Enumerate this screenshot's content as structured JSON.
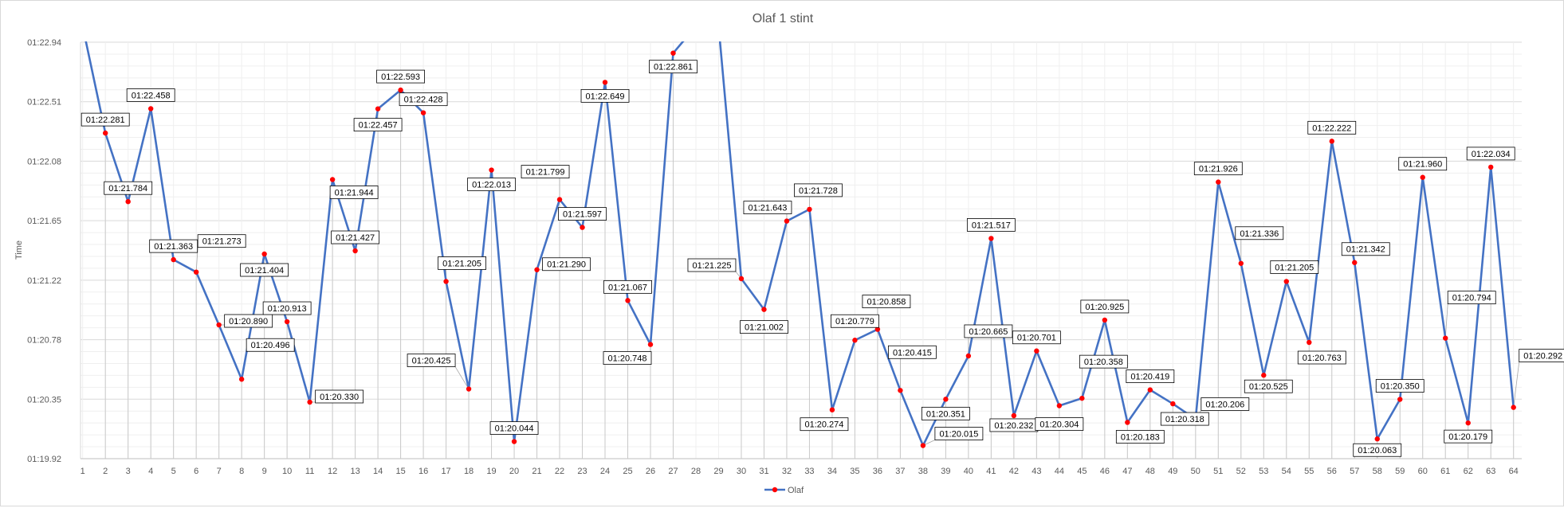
{
  "chart_data": {
    "type": "line",
    "title": "Olaf 1 stint",
    "xlabel": "",
    "ylabel": "Time",
    "x": [
      "1",
      "2",
      "3",
      "4",
      "5",
      "6",
      "7",
      "8",
      "9",
      "10",
      "11",
      "12",
      "13",
      "14",
      "15",
      "16",
      "17",
      "18",
      "19",
      "20",
      "21",
      "22",
      "23",
      "24",
      "25",
      "26",
      "27",
      "28",
      "29",
      "30",
      "31",
      "32",
      "33",
      "34",
      "35",
      "36",
      "37",
      "38",
      "39",
      "40",
      "41",
      "42",
      "43",
      "44",
      "45",
      "46",
      "47",
      "48",
      "49",
      "50",
      "51",
      "52",
      "53",
      "54",
      "55",
      "56",
      "57",
      "58",
      "59",
      "60",
      "61",
      "62",
      "63",
      "64"
    ],
    "y_ticks": [
      "01:19.92",
      "01:20.35",
      "01:20.78",
      "01:21.22",
      "01:21.65",
      "01:22.08",
      "01:22.51",
      "01:22.94"
    ],
    "ylim": [
      79.92,
      82.94
    ],
    "legend": "bottom",
    "grid": true,
    "series": [
      {
        "name": "Olaf",
        "color": "#4472c4",
        "marker_color": "#ff0000",
        "values": [
          null,
          82.281,
          81.784,
          82.458,
          81.363,
          81.273,
          80.89,
          80.496,
          81.404,
          80.913,
          80.33,
          81.944,
          81.427,
          82.457,
          82.593,
          82.428,
          81.205,
          80.425,
          82.013,
          80.044,
          81.29,
          81.799,
          81.597,
          82.649,
          81.067,
          80.748,
          82.861,
          null,
          null,
          81.225,
          81.002,
          81.643,
          81.728,
          80.274,
          80.779,
          80.858,
          80.415,
          80.015,
          80.351,
          80.665,
          81.517,
          80.232,
          80.701,
          80.304,
          80.358,
          80.925,
          80.183,
          80.419,
          80.318,
          80.206,
          81.926,
          81.336,
          80.525,
          81.205,
          80.763,
          82.222,
          81.342,
          80.063,
          80.35,
          81.96,
          80.794,
          80.179,
          82.034,
          80.292
        ],
        "labels": [
          "",
          "01:22.281",
          "01:21.784",
          "01:22.458",
          "01:21.363",
          "01:21.273",
          "01:20.890",
          "01:20.496",
          "01:21.404",
          "01:20.913",
          "01:20.330",
          "01:21.944",
          "01:21.427",
          "01:22.457",
          "01:22.593",
          "01:22.428",
          "01:21.205",
          "01:20.425",
          "01:22.013",
          "01:20.044",
          "01:21.290",
          "01:21.799",
          "01:21.597",
          "01:22.649",
          "01:21.067",
          "01:20.748",
          "01:22.861",
          "",
          "",
          "01:21.225",
          "01:21.002",
          "01:21.643",
          "01:21.728",
          "01:20.274",
          "01:20.779",
          "01:20.858",
          "01:20.415",
          "01:20.015",
          "01:20.351",
          "01:20.665",
          "01:21.517",
          "01:20.232",
          "01:20.701",
          "01:20.304",
          "01:20.358",
          "01:20.925",
          "01:20.183",
          "01:20.419",
          "01:20.318",
          "01:20.206",
          "01:21.926",
          "01:21.336",
          "01:20.525",
          "01:21.205",
          "01:20.763",
          "01:22.222",
          "01:21.342",
          "01:20.063",
          "01:20.350",
          "01:21.960",
          "01:20.794",
          "01:20.179",
          "01:22.034",
          "01:20.292"
        ]
      }
    ]
  }
}
